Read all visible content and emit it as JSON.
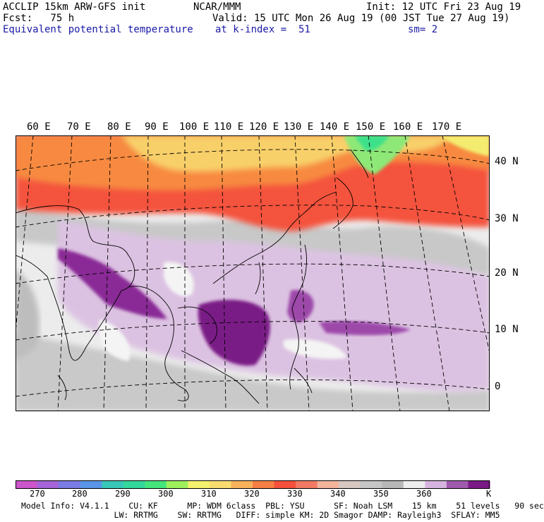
{
  "header": {
    "model": "ACCLIP 15km ARW-GFS init",
    "org": "NCAR/MMM",
    "init": "Init: 12 UTC Fri 23 Aug 19",
    "fcst": "Fcst:   75 h",
    "valid": "Valid: 15 UTC Mon 26 Aug 19 (00 JST Tue 27 Aug 19)",
    "field": "Equivalent potential temperature",
    "level": "at k-index =  51",
    "smooth": "sm= 2"
  },
  "map": {
    "lon_labels": [
      "60 E",
      "70 E",
      "80 E",
      "90 E",
      "100 E",
      "110 E",
      "120 E",
      "130 E",
      "140 E",
      "150 E",
      "160 E",
      "170 E"
    ],
    "lat_labels": [
      "40 N",
      "30 N",
      "20 N",
      "10 N",
      "0"
    ],
    "units": "K",
    "colors": {
      "ocean_gray": "#c4c4c4",
      "land_dark": "#b0b0b0",
      "white": "#f2f2f2",
      "light_purple": "#d9bde0",
      "mid_purple": "#a65aad",
      "dark_purple": "#7a1a86",
      "red": "#f4503c",
      "orange": "#f7883c",
      "yellow": "#fae06a",
      "green": "#39e08a"
    }
  },
  "colorbar": {
    "ticks": [
      "270",
      "280",
      "290",
      "300",
      "310",
      "320",
      "330",
      "340",
      "350",
      "360"
    ],
    "unit": "K",
    "colors": [
      "#cc55cc",
      "#a565d8",
      "#7b7be6",
      "#5a96e8",
      "#39c7b8",
      "#34d79c",
      "#45e57e",
      "#9ff05c",
      "#f4f26c",
      "#f9dc70",
      "#f8b25a",
      "#f77e44",
      "#f4503c",
      "#f27a64",
      "#f3b49c",
      "#d6c8c0",
      "#c6c6c6",
      "#b8b8b8",
      "#ededed",
      "#d7b4df",
      "#a05aad",
      "#7a1a86"
    ]
  },
  "footer": {
    "line1": "Model Info: V4.1.1    CU: KF      MP: WDM 6class  PBL: YSU      SF: Noah LSM    15 km    51 levels   90 sec",
    "line2": "                   LW: RRTMG    SW: RRTMG   DIFF: simple KM: 2D Smagor DAMP: Rayleigh3  SFLAY: MM5"
  }
}
